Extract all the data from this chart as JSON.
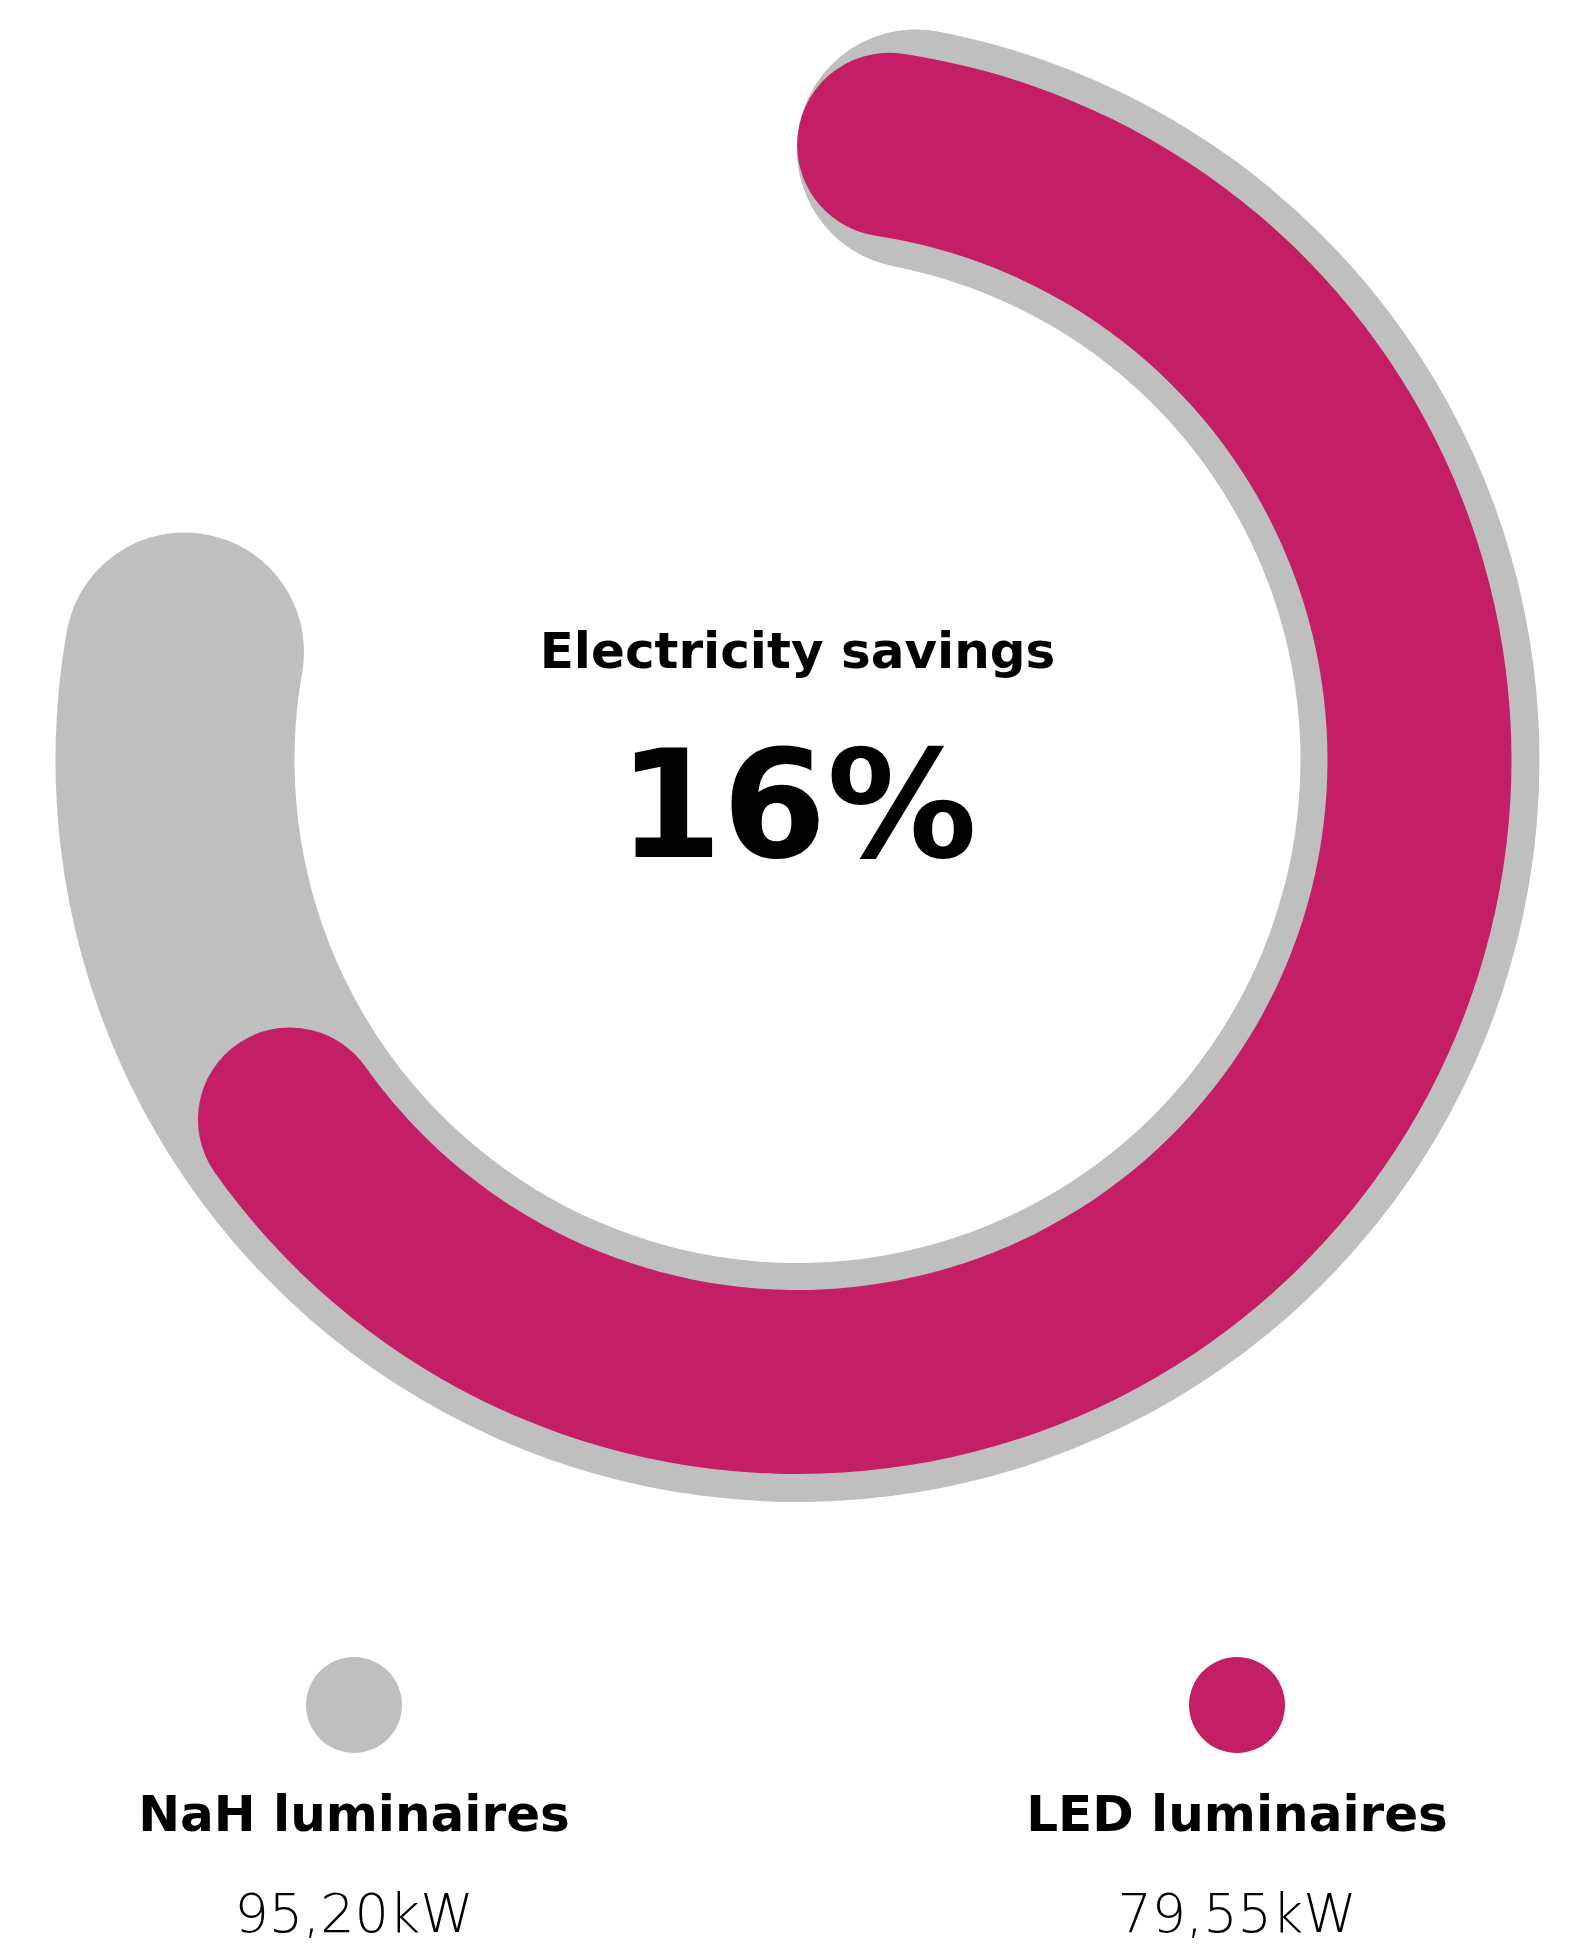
{
  "chart_data": {
    "type": "other",
    "title": "Electricity savings",
    "annotations": [
      "16%"
    ],
    "categories": [
      "NaH luminaires",
      "LED luminaires"
    ],
    "values": [
      95.2,
      79.55
    ],
    "colors": [
      "#bfbfbf",
      "#c41e66"
    ],
    "value_labels": [
      "95,20kW",
      "79,55kW"
    ]
  }
}
